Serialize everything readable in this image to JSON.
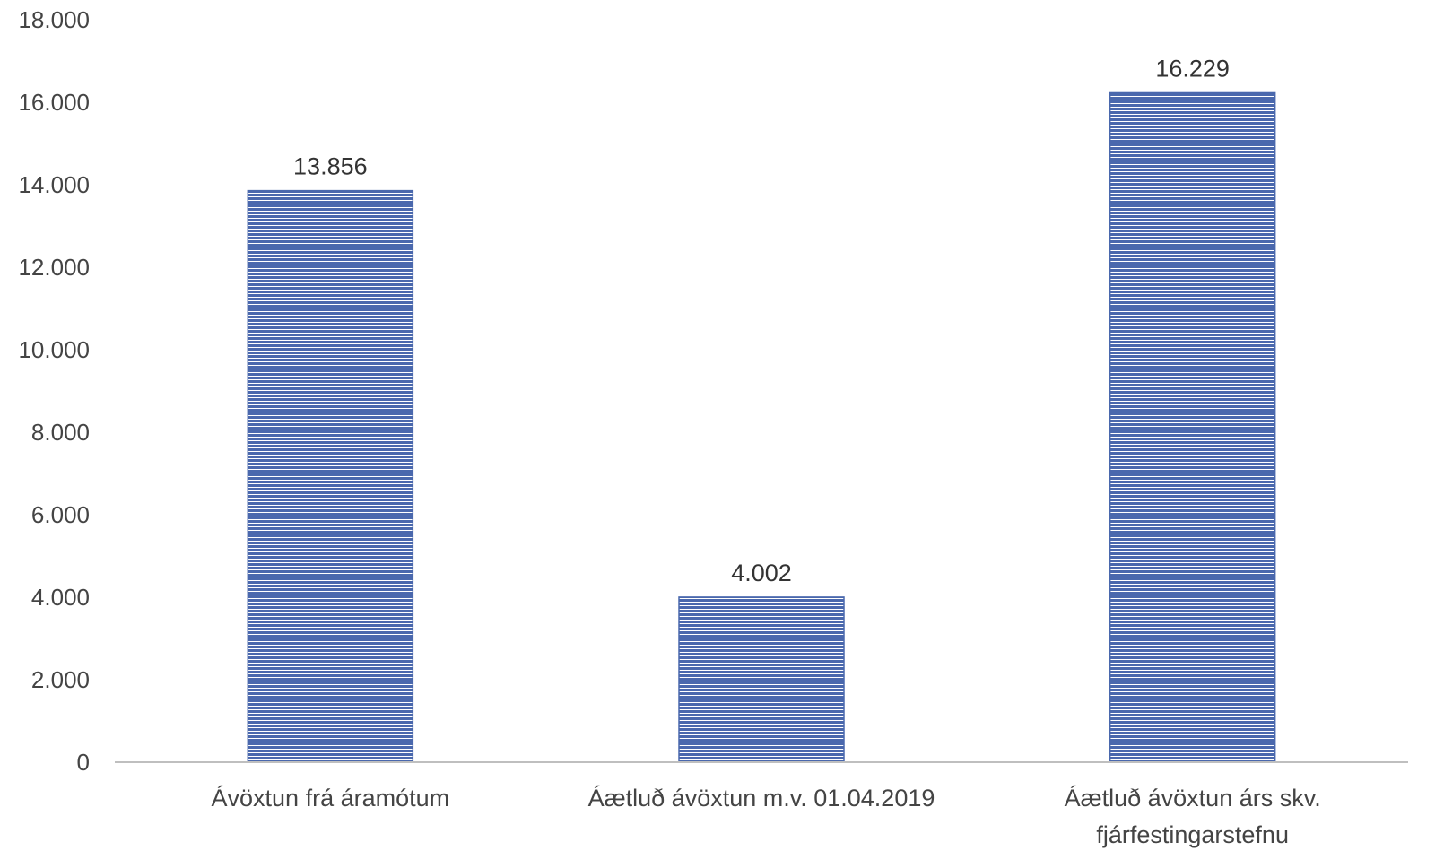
{
  "chart_data": {
    "type": "bar",
    "title": "",
    "xlabel": "",
    "ylabel": "",
    "ylim": [
      0,
      18000
    ],
    "yticks": [
      {
        "value": 0,
        "label": "0"
      },
      {
        "value": 2000,
        "label": "2.000"
      },
      {
        "value": 4000,
        "label": "4.000"
      },
      {
        "value": 6000,
        "label": "6.000"
      },
      {
        "value": 8000,
        "label": "8.000"
      },
      {
        "value": 10000,
        "label": "10.000"
      },
      {
        "value": 12000,
        "label": "12.000"
      },
      {
        "value": 14000,
        "label": "14.000"
      },
      {
        "value": 16000,
        "label": "16.000"
      },
      {
        "value": 18000,
        "label": "18.000"
      }
    ],
    "categories": [
      [
        "Ávöxtun frá áramótum"
      ],
      [
        "Áætluð ávöxtun m.v. 01.04.2019"
      ],
      [
        "Áætluð ávöxtun árs skv.",
        "fjárfestingarstefnu"
      ]
    ],
    "values": [
      13856,
      4002,
      16229
    ],
    "data_labels": [
      "13.856",
      "4.002",
      "16.229"
    ],
    "grid": false,
    "legend": "none",
    "bar_color": "#4a68ad",
    "bar_stripe_color": "#ffffff",
    "axis_color": "#bfbfbf"
  }
}
